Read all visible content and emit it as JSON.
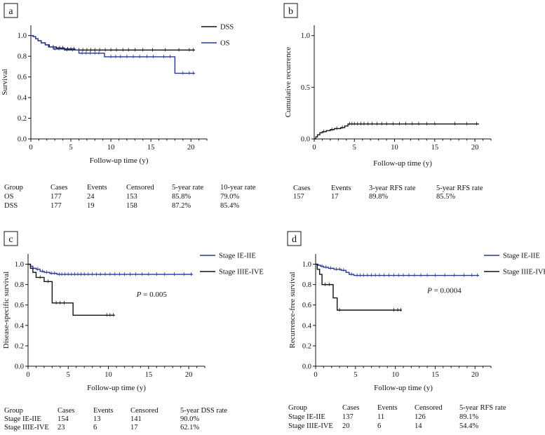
{
  "chart_data": [
    {
      "id": "a",
      "panel_label": "a",
      "type": "line",
      "subtype": "kaplan-meier",
      "xlabel": "Follow-up time (y)",
      "ylabel": "Survival",
      "xlim": [
        0,
        22
      ],
      "ylim": [
        0,
        1.1
      ],
      "xticks": [
        "0",
        "5",
        "10",
        "15",
        "20"
      ],
      "yticks": [
        "0.0",
        "0.2",
        "0.4",
        "0.6",
        "0.8",
        "1.0"
      ],
      "legend_position": "top-right",
      "series": [
        {
          "name": "DSS",
          "color": "#111111",
          "steps": [
            [
              0,
              1.0
            ],
            [
              0.3,
              0.99
            ],
            [
              0.6,
              0.97
            ],
            [
              0.9,
              0.95
            ],
            [
              1.3,
              0.93
            ],
            [
              1.8,
              0.91
            ],
            [
              2.3,
              0.89
            ],
            [
              3.2,
              0.88
            ],
            [
              4.2,
              0.87
            ],
            [
              5.5,
              0.86
            ],
            [
              20.5,
              0.86
            ]
          ],
          "censor": [
            2.8,
            3.6,
            4.0,
            4.6,
            5.0,
            5.4,
            6.0,
            6.5,
            7.0,
            7.5,
            8.0,
            8.6,
            9.3,
            10.0,
            10.7,
            11.5,
            12.2,
            13.0,
            14.0,
            15.2,
            16.8,
            18.5,
            19.8,
            20.3
          ]
        },
        {
          "name": "OS",
          "color": "#2233bb",
          "steps": [
            [
              0,
              1.0
            ],
            [
              0.3,
              0.99
            ],
            [
              0.6,
              0.97
            ],
            [
              0.9,
              0.95
            ],
            [
              1.3,
              0.93
            ],
            [
              1.8,
              0.91
            ],
            [
              2.2,
              0.89
            ],
            [
              2.8,
              0.87
            ],
            [
              4.2,
              0.86
            ],
            [
              6.0,
              0.83
            ],
            [
              9.2,
              0.795
            ],
            [
              18.0,
              0.795
            ],
            [
              18.0,
              0.635
            ],
            [
              20.5,
              0.635
            ]
          ],
          "censor": [
            3.0,
            3.5,
            4.5,
            5.2,
            6.4,
            6.9,
            7.4,
            8.0,
            8.5,
            10.0,
            10.6,
            11.2,
            12.0,
            12.8,
            13.6,
            14.5,
            15.3,
            16.6,
            17.4,
            19.0,
            19.8,
            20.3
          ]
        }
      ],
      "table": {
        "headers": [
          "Group",
          "Cases",
          "Events",
          "Censored",
          "5-year rate",
          "10-year rate"
        ],
        "rows": [
          [
            "OS",
            "177",
            "24",
            "153",
            "85.8%",
            "79.0%"
          ],
          [
            "DSS",
            "177",
            "19",
            "158",
            "87.2%",
            "85.4%"
          ]
        ]
      }
    },
    {
      "id": "b",
      "panel_label": "b",
      "type": "line",
      "subtype": "cumulative-incidence",
      "xlabel": "Follow-up time (y)",
      "ylabel": "Cumulative recurrence",
      "xlim": [
        0,
        22
      ],
      "ylim": [
        0,
        1.1
      ],
      "xticks": [
        "0",
        "5",
        "10",
        "15",
        "20"
      ],
      "yticks": [
        "0.0",
        "0.5",
        "1.0"
      ],
      "series": [
        {
          "name": "Recurrence",
          "color": "#111111",
          "steps": [
            [
              0,
              0.0
            ],
            [
              0.2,
              0.02
            ],
            [
              0.4,
              0.04
            ],
            [
              0.7,
              0.06
            ],
            [
              1.0,
              0.07
            ],
            [
              1.5,
              0.08
            ],
            [
              2.0,
              0.09
            ],
            [
              2.5,
              0.1
            ],
            [
              3.3,
              0.11
            ],
            [
              3.8,
              0.125
            ],
            [
              4.2,
              0.145
            ],
            [
              20.5,
              0.145
            ]
          ],
          "censor": [
            1.2,
            2.2,
            2.8,
            3.5,
            4.4,
            4.7,
            5.0,
            5.4,
            5.8,
            6.2,
            6.7,
            7.2,
            7.8,
            8.4,
            9.0,
            9.8,
            10.6,
            11.4,
            12.2,
            13.0,
            14.0,
            15.0,
            17.5,
            19.0,
            20.2
          ]
        }
      ],
      "table": {
        "headers": [
          "Cases",
          "Events",
          "3-year RFS rate",
          "5-year RFS rate"
        ],
        "rows": [
          [
            "157",
            "17",
            "89.8%",
            "85.5%"
          ]
        ]
      }
    },
    {
      "id": "c",
      "panel_label": "c",
      "type": "line",
      "subtype": "kaplan-meier",
      "xlabel": "Follow-up time (y)",
      "ylabel": "Disease-specific survival",
      "xlim": [
        0,
        22
      ],
      "ylim": [
        0,
        1.1
      ],
      "xticks": [
        "0",
        "5",
        "10",
        "15",
        "20"
      ],
      "yticks": [
        "0.0",
        "0.2",
        "0.4",
        "0.6",
        "0.8",
        "1.0"
      ],
      "legend_position": "top-right",
      "annotation": {
        "label": "P",
        "text": " = 0.005",
        "x": 13.5,
        "y": 0.68
      },
      "series": [
        {
          "name": "Stage IE-IIE",
          "color": "#2233bb",
          "steps": [
            [
              0,
              1.0
            ],
            [
              0.3,
              0.98
            ],
            [
              0.6,
              0.96
            ],
            [
              1.0,
              0.95
            ],
            [
              1.5,
              0.93
            ],
            [
              2.0,
              0.92
            ],
            [
              2.7,
              0.91
            ],
            [
              3.6,
              0.9
            ],
            [
              20.5,
              0.9
            ]
          ],
          "censor": [
            1.2,
            1.8,
            2.3,
            2.9,
            3.3,
            3.9,
            4.2,
            4.6,
            5.0,
            5.4,
            5.8,
            6.2,
            6.6,
            7.0,
            7.5,
            8.0,
            8.5,
            9.0,
            9.6,
            10.2,
            10.8,
            11.4,
            12.0,
            12.7,
            13.4,
            14.2,
            15.0,
            16.0,
            17.0,
            18.2,
            19.4,
            20.3
          ]
        },
        {
          "name": "Stage IIIE-IVE",
          "color": "#111111",
          "steps": [
            [
              0,
              1.0
            ],
            [
              0.3,
              0.96
            ],
            [
              0.6,
              0.92
            ],
            [
              1.0,
              0.87
            ],
            [
              2.0,
              0.87
            ],
            [
              2.0,
              0.83
            ],
            [
              3.0,
              0.83
            ],
            [
              3.0,
              0.62
            ],
            [
              5.6,
              0.62
            ],
            [
              5.6,
              0.5
            ],
            [
              10.8,
              0.5
            ]
          ],
          "censor": [
            1.5,
            2.5,
            3.5,
            4.0,
            4.5,
            9.8,
            10.2,
            10.6
          ]
        }
      ],
      "table": {
        "headers": [
          "Group",
          "Cases",
          "Events",
          "Censored",
          "5-year DSS rate"
        ],
        "rows": [
          [
            "Stage IE-IIE",
            "154",
            "13",
            "141",
            "90.0%"
          ],
          [
            "Stage IIIE-IVE",
            "23",
            "6",
            "17",
            "62.1%"
          ]
        ]
      }
    },
    {
      "id": "d",
      "panel_label": "d",
      "type": "line",
      "subtype": "kaplan-meier",
      "xlabel": "Follow-up time (y)",
      "ylabel": "Recurrence-free survival",
      "xlim": [
        0,
        22
      ],
      "ylim": [
        0,
        1.1
      ],
      "xticks": [
        "0",
        "5",
        "10",
        "15",
        "20"
      ],
      "yticks": [
        "0.0",
        "0.2",
        "0.4",
        "0.6",
        "0.8",
        "1.0"
      ],
      "legend_position": "top-right",
      "annotation": {
        "label": "P",
        "text": " = 0.0004",
        "x": 14.0,
        "y": 0.72
      },
      "series": [
        {
          "name": "Stage IE-IIE",
          "color": "#2233bb",
          "steps": [
            [
              0,
              1.0
            ],
            [
              0.3,
              0.99
            ],
            [
              0.6,
              0.98
            ],
            [
              1.0,
              0.97
            ],
            [
              1.6,
              0.96
            ],
            [
              2.3,
              0.95
            ],
            [
              3.2,
              0.94
            ],
            [
              3.8,
              0.92
            ],
            [
              4.2,
              0.9
            ],
            [
              4.8,
              0.89
            ],
            [
              20.5,
              0.89
            ]
          ],
          "censor": [
            0.8,
            1.3,
            1.9,
            2.6,
            3.0,
            3.5,
            4.5,
            5.2,
            5.6,
            6.0,
            6.5,
            7.0,
            7.5,
            8.0,
            8.6,
            9.2,
            9.8,
            10.4,
            11.0,
            11.7,
            12.4,
            13.2,
            14.0,
            15.0,
            16.2,
            17.4,
            18.6,
            19.6,
            20.3
          ]
        },
        {
          "name": "Stage IIIE-IVE",
          "color": "#111111",
          "steps": [
            [
              0,
              1.0
            ],
            [
              0.2,
              0.95
            ],
            [
              0.5,
              0.9
            ],
            [
              0.8,
              0.8
            ],
            [
              2.2,
              0.8
            ],
            [
              2.2,
              0.67
            ],
            [
              2.7,
              0.67
            ],
            [
              2.7,
              0.55
            ],
            [
              10.8,
              0.55
            ]
          ],
          "censor": [
            1.2,
            1.7,
            3.0,
            9.8,
            10.3,
            10.7
          ]
        }
      ],
      "table": {
        "headers": [
          "Group",
          "Cases",
          "Events",
          "Censored",
          "5-year RFS rate"
        ],
        "rows": [
          [
            "Stage IE-IIE",
            "137",
            "11",
            "126",
            "89.1%"
          ],
          [
            "Stage IIIE-IVE",
            "20",
            "6",
            "14",
            "54.4%"
          ]
        ]
      }
    }
  ]
}
